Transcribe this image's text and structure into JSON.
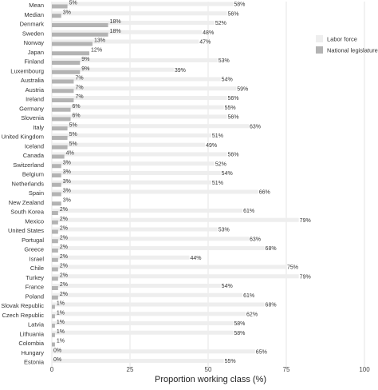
{
  "chart_data": {
    "type": "bar",
    "orientation": "horizontal",
    "title": "",
    "xlabel": "Proportion working class (%)",
    "ylabel": "",
    "xlim": [
      0,
      100
    ],
    "x_ticks": [
      "0",
      "25",
      "50",
      "75",
      "100"
    ],
    "grid": true,
    "legend_position": "top-right",
    "colors": {
      "Labor force": "#eeeeee",
      "National legislature": "#b3b3b3"
    },
    "categories": [
      "Mean",
      "Median",
      "Denmark",
      "Sweden",
      "Norway",
      "Japan",
      "Finland",
      "Luxembourg",
      "Australia",
      "Austria",
      "Ireland",
      "Germany",
      "Slovenia",
      "Italy",
      "United Kingdom",
      "Iceland",
      "Canada",
      "Switzerland",
      "Belgium",
      "Netherlands",
      "Spain",
      "New Zealand",
      "South Korea",
      "Mexico",
      "United States",
      "Portugal",
      "Greece",
      "Israel",
      "Chile",
      "Turkey",
      "France",
      "Poland",
      "Slovak Republic",
      "Czech Republic",
      "Latvia",
      "Lithuania",
      "Colombia",
      "Hungary",
      "Estonia"
    ],
    "series": [
      {
        "name": "Labor force",
        "values": [
          58,
          56,
          52,
          48,
          47,
          null,
          53,
          39,
          54,
          59,
          56,
          55,
          56,
          63,
          51,
          49,
          56,
          52,
          54,
          51,
          66,
          null,
          61,
          79,
          53,
          63,
          68,
          44,
          75,
          79,
          54,
          61,
          68,
          62,
          58,
          58,
          null,
          65,
          55
        ],
        "labels": [
          "58%",
          "56%",
          "52%",
          "48%",
          "47%",
          "",
          "53%",
          "39%",
          "54%",
          "59%",
          "56%",
          "55%",
          "56%",
          "63%",
          "51%",
          "49%",
          "56%",
          "52%",
          "54%",
          "51%",
          "66%",
          "",
          "61%",
          "79%",
          "53%",
          "63%",
          "68%",
          "44%",
          "75%",
          "79%",
          "54%",
          "61%",
          "68%",
          "62%",
          "58%",
          "58%",
          "",
          "65%",
          "55%"
        ]
      },
      {
        "name": "National legislature",
        "values": [
          5,
          3,
          18,
          18,
          13,
          12,
          9,
          9,
          7,
          7,
          7,
          6,
          6,
          5,
          5,
          5,
          4,
          3,
          3,
          3,
          3,
          3,
          2,
          2,
          2,
          2,
          2,
          2,
          2,
          2,
          2,
          2,
          1,
          1,
          1,
          1,
          1,
          0,
          0
        ],
        "labels": [
          "5%",
          "3%",
          "18%",
          "18%",
          "13%",
          "12%",
          "9%",
          "9%",
          "7%",
          "7%",
          "7%",
          "6%",
          "6%",
          "5%",
          "5%",
          "5%",
          "4%",
          "3%",
          "3%",
          "3%",
          "3%",
          "3%",
          "2%",
          "2%",
          "2%",
          "2%",
          "2%",
          "2%",
          "2%",
          "2%",
          "2%",
          "2%",
          "1%",
          "1%",
          "1%",
          "1%",
          "1%",
          "0%",
          "0%"
        ]
      }
    ]
  }
}
